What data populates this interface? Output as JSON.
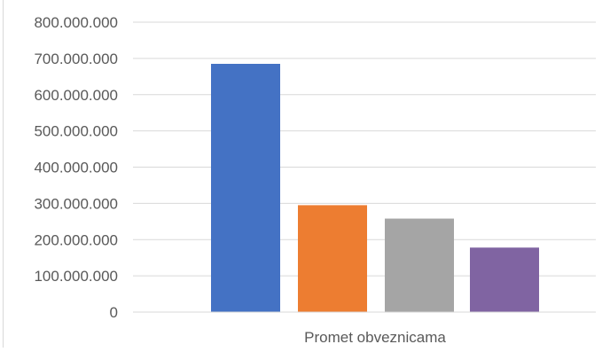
{
  "chart_data": {
    "type": "bar",
    "categories": [
      "Promet obveznicama"
    ],
    "series": [
      {
        "values": [
          685000000
        ],
        "color": "#4472c4"
      },
      {
        "values": [
          295000000
        ],
        "color": "#ed7d31"
      },
      {
        "values": [
          258000000
        ],
        "color": "#a5a5a5"
      },
      {
        "values": [
          178000000
        ],
        "color": "#8064a2"
      }
    ],
    "yticks": [
      "0",
      "100.000.000",
      "200.000.000",
      "300.000.000",
      "400.000.000",
      "500.000.000",
      "600.000.000",
      "700.000.000",
      "800.000.000"
    ],
    "ylim": [
      0,
      800000000
    ],
    "grid": true,
    "legend": "none",
    "colors": {
      "grid": "#d9d9d9",
      "axis_text": "#595959"
    }
  }
}
